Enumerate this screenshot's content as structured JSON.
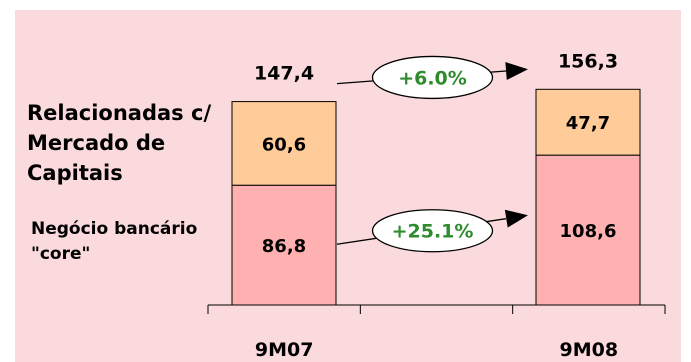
{
  "chart_data": {
    "type": "bar",
    "stacked": true,
    "categories": [
      "9M07",
      "9M08"
    ],
    "series": [
      {
        "name": "Negócio bancário \"core\"",
        "values": [
          86.8,
          108.6
        ],
        "value_labels": [
          "86,8",
          "108,6"
        ],
        "color": "#ffb0b0"
      },
      {
        "name": "Relacionadas c/ Mercado de Capitais",
        "values": [
          60.6,
          47.7
        ],
        "value_labels": [
          "60,6",
          "47,7"
        ],
        "color": "#ffcc99"
      }
    ],
    "totals": [
      147.4,
      156.3
    ],
    "total_labels": [
      "147,4",
      "156,3"
    ],
    "annotations": [
      {
        "text": "+6.0%",
        "from": "9M07",
        "to": "9M08",
        "series": "total"
      },
      {
        "text": "+25.1%",
        "from": "9M07",
        "to": "9M08",
        "series": "Negócio bancário \"core\""
      }
    ],
    "legend_labels": {
      "top": [
        "Relacionadas c/",
        "Mercado de",
        "Capitais"
      ],
      "bottom": [
        "Negócio bancário",
        "\"core\""
      ]
    },
    "ylim": [
      0,
      160
    ],
    "grid": false,
    "colors": {
      "background": "#fadadd",
      "growth_text": "#2e8b2e",
      "outline": "#000000"
    }
  }
}
